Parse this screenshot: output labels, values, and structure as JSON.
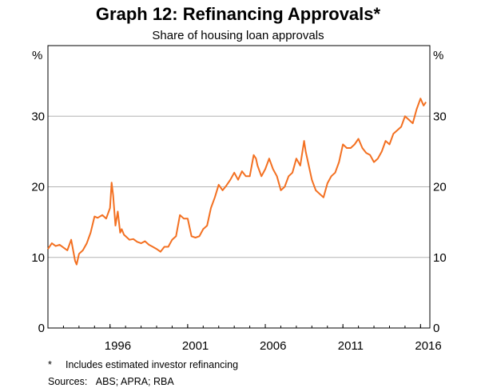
{
  "chart_data": {
    "type": "line",
    "title": "Graph 12: Refinancing Approvals*",
    "subtitle": "Share of housing loan approvals",
    "y_unit_left": "%",
    "y_unit_right": "%",
    "ylim": [
      0,
      40
    ],
    "y_ticks": [
      0,
      10,
      20,
      30
    ],
    "x_ticks": [
      1996,
      2001,
      2006,
      2011,
      2016
    ],
    "xlim": [
      1992.0,
      2016.6
    ],
    "grid": true,
    "series": [
      {
        "color": "#F37021",
        "x": [
          1992.0,
          1992.25,
          1992.5,
          1992.75,
          1993.0,
          1993.25,
          1993.5,
          1993.75,
          1993.85,
          1994.0,
          1994.25,
          1994.5,
          1994.75,
          1995.0,
          1995.2,
          1995.5,
          1995.75,
          1996.0,
          1996.1,
          1996.2,
          1996.35,
          1996.5,
          1996.65,
          1996.75,
          1996.9,
          1997.0,
          1997.25,
          1997.5,
          1997.75,
          1998.0,
          1998.25,
          1998.5,
          1998.75,
          1999.0,
          1999.25,
          1999.5,
          1999.75,
          2000.0,
          2000.25,
          2000.5,
          2000.75,
          2001.0,
          2001.25,
          2001.5,
          2001.75,
          2002.0,
          2002.25,
          2002.5,
          2002.75,
          2003.0,
          2003.25,
          2003.5,
          2003.75,
          2004.0,
          2004.25,
          2004.5,
          2004.75,
          2005.0,
          2005.25,
          2005.4,
          2005.5,
          2005.75,
          2006.0,
          2006.25,
          2006.5,
          2006.75,
          2007.0,
          2007.25,
          2007.5,
          2007.75,
          2008.0,
          2008.25,
          2008.5,
          2008.6,
          2008.75,
          2009.0,
          2009.25,
          2009.5,
          2009.75,
          2010.0,
          2010.25,
          2010.5,
          2010.75,
          2011.0,
          2011.25,
          2011.5,
          2011.75,
          2012.0,
          2012.25,
          2012.5,
          2012.75,
          2013.0,
          2013.25,
          2013.5,
          2013.75,
          2014.0,
          2014.25,
          2014.5,
          2014.75,
          2015.0,
          2015.25,
          2015.5,
          2015.75,
          2016.0,
          2016.2,
          2016.35
        ],
        "values": [
          11.2,
          12.0,
          11.6,
          11.8,
          11.4,
          11.0,
          12.5,
          9.5,
          9.0,
          10.5,
          11.0,
          12.0,
          13.5,
          15.8,
          15.6,
          16.0,
          15.5,
          17.0,
          20.6,
          18.8,
          14.5,
          16.5,
          13.5,
          14.0,
          13.2,
          13.0,
          12.5,
          12.6,
          12.2,
          12.0,
          12.3,
          11.8,
          11.5,
          11.2,
          10.8,
          11.5,
          11.5,
          12.5,
          13.0,
          16.0,
          15.5,
          15.5,
          13.0,
          12.8,
          13.0,
          14.0,
          14.5,
          17.0,
          18.5,
          20.3,
          19.5,
          20.2,
          21.0,
          22.0,
          21.0,
          22.2,
          21.5,
          21.5,
          24.5,
          24.0,
          23.0,
          21.5,
          22.5,
          24.0,
          22.5,
          21.5,
          19.5,
          20.0,
          21.5,
          22.0,
          24.0,
          23.0,
          26.5,
          25.0,
          23.5,
          21.0,
          19.5,
          19.0,
          18.5,
          20.5,
          21.5,
          22.0,
          23.5,
          26.0,
          25.5,
          25.5,
          26.0,
          26.8,
          25.5,
          24.8,
          24.5,
          23.5,
          24.0,
          25.0,
          26.5,
          26.0,
          27.5,
          28.0,
          28.5,
          30.0,
          29.5,
          29.0,
          31.0,
          32.5,
          31.5,
          32.0
        ]
      }
    ]
  },
  "footnote": {
    "marker": "*",
    "text": "Includes estimated investor refinancing"
  },
  "sources": "Sources:   ABS; APRA; RBA"
}
